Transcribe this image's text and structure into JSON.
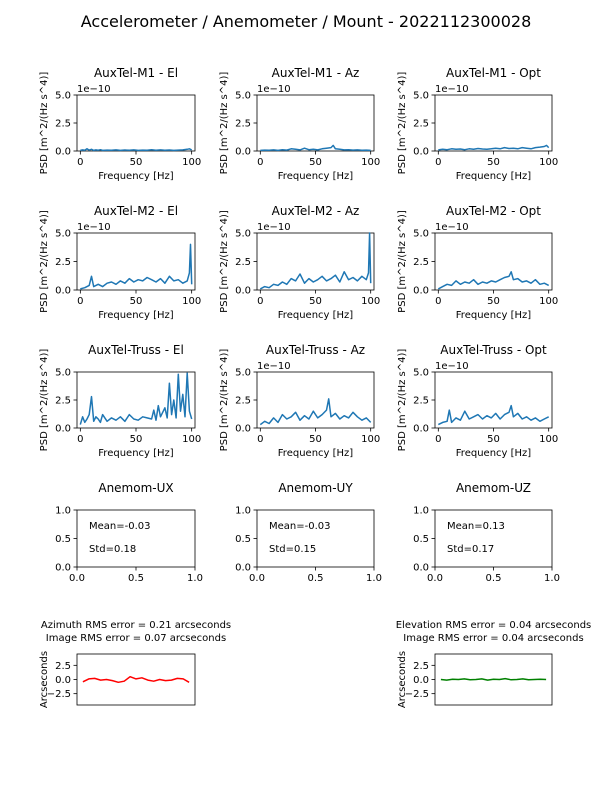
{
  "figure": {
    "title": "Accelerometer / Anemometer / Mount - 2022112300028"
  },
  "chart_data": [
    {
      "id": "m1el",
      "type": "line",
      "title": "AuxTel-M1 - El",
      "xlabel": "Frequency [Hz]",
      "ylabel": "PSD [m^2/(Hz s^4)]",
      "offset_text": "1e−10",
      "xlim": [
        -3,
        103
      ],
      "ylim": [
        0,
        5
      ],
      "xticks": [
        0,
        50,
        100
      ],
      "yticks": [
        0.0,
        2.5,
        5.0
      ],
      "xtick_labels": [
        "0",
        "50",
        "100"
      ],
      "ytick_labels": [
        "0.0",
        "2.5",
        "5.0"
      ],
      "scale_note": "values in units of 1e-10",
      "series": [
        {
          "name": "PSD",
          "color": "#1f77b4",
          "x": [
            0,
            2,
            4,
            6,
            8,
            10,
            12,
            14,
            16,
            18,
            20,
            24,
            28,
            32,
            36,
            40,
            44,
            48,
            52,
            56,
            60,
            64,
            68,
            72,
            76,
            80,
            84,
            88,
            92,
            96,
            98,
            100
          ],
          "y": [
            0.05,
            0.1,
            0.06,
            0.2,
            0.08,
            0.15,
            0.05,
            0.1,
            0.07,
            0.12,
            0.05,
            0.08,
            0.06,
            0.1,
            0.05,
            0.09,
            0.06,
            0.1,
            0.05,
            0.08,
            0.06,
            0.12,
            0.07,
            0.1,
            0.06,
            0.09,
            0.05,
            0.08,
            0.1,
            0.15,
            0.2,
            0.1
          ]
        }
      ]
    },
    {
      "id": "m1az",
      "type": "line",
      "title": "AuxTel-M1 - Az",
      "xlabel": "Frequency [Hz]",
      "ylabel": "PSD [m^2/(Hz s^4)]",
      "offset_text": "1e−10",
      "xlim": [
        -3,
        103
      ],
      "ylim": [
        0,
        5
      ],
      "xticks": [
        0,
        50,
        100
      ],
      "yticks": [
        0.0,
        2.5,
        5.0
      ],
      "xtick_labels": [
        "0",
        "50",
        "100"
      ],
      "ytick_labels": [
        "0.0",
        "2.5",
        "5.0"
      ],
      "scale_note": "values in units of 1e-10",
      "series": [
        {
          "name": "PSD",
          "color": "#1f77b4",
          "x": [
            0,
            4,
            8,
            12,
            16,
            20,
            24,
            28,
            32,
            36,
            40,
            44,
            48,
            52,
            56,
            60,
            64,
            66,
            68,
            72,
            76,
            80,
            84,
            88,
            92,
            96,
            100
          ],
          "y": [
            0.05,
            0.08,
            0.06,
            0.1,
            0.05,
            0.12,
            0.08,
            0.2,
            0.15,
            0.1,
            0.25,
            0.12,
            0.15,
            0.1,
            0.2,
            0.25,
            0.3,
            0.5,
            0.2,
            0.15,
            0.1,
            0.12,
            0.08,
            0.1,
            0.06,
            0.08,
            0.05
          ]
        }
      ]
    },
    {
      "id": "m1opt",
      "type": "line",
      "title": "AuxTel-M1 - Opt",
      "xlabel": "Frequency [Hz]",
      "ylabel": "PSD [m^2/(Hz s^4)]",
      "offset_text": "1e−10",
      "xlim": [
        -3,
        103
      ],
      "ylim": [
        0,
        5
      ],
      "xticks": [
        0,
        50,
        100
      ],
      "yticks": [
        0.0,
        2.5,
        5.0
      ],
      "xtick_labels": [
        "0",
        "50",
        "100"
      ],
      "ytick_labels": [
        "0.0",
        "2.5",
        "5.0"
      ],
      "scale_note": "values in units of 1e-10",
      "series": [
        {
          "name": "PSD",
          "color": "#1f77b4",
          "x": [
            0,
            4,
            8,
            12,
            16,
            20,
            24,
            28,
            32,
            36,
            40,
            44,
            48,
            52,
            56,
            60,
            64,
            68,
            72,
            76,
            80,
            84,
            88,
            92,
            96,
            98,
            100
          ],
          "y": [
            0.1,
            0.15,
            0.12,
            0.2,
            0.15,
            0.18,
            0.12,
            0.2,
            0.15,
            0.22,
            0.18,
            0.15,
            0.2,
            0.25,
            0.2,
            0.3,
            0.22,
            0.25,
            0.2,
            0.3,
            0.25,
            0.2,
            0.3,
            0.35,
            0.4,
            0.5,
            0.3
          ]
        }
      ]
    },
    {
      "id": "m2el",
      "type": "line",
      "title": "AuxTel-M2 - El",
      "xlabel": "Frequency [Hz]",
      "ylabel": "PSD [m^2/(Hz s^4)]",
      "offset_text": "1e−10",
      "xlim": [
        -3,
        103
      ],
      "ylim": [
        0,
        5
      ],
      "xticks": [
        0,
        50,
        100
      ],
      "yticks": [
        0.0,
        2.5,
        5.0
      ],
      "xtick_labels": [
        "0",
        "50",
        "100"
      ],
      "ytick_labels": [
        "0.0",
        "2.5",
        "5.0"
      ],
      "scale_note": "values in units of 1e-10",
      "series": [
        {
          "name": "PSD",
          "color": "#1f77b4",
          "x": [
            0,
            4,
            8,
            10,
            12,
            16,
            20,
            24,
            28,
            32,
            36,
            40,
            44,
            48,
            52,
            56,
            60,
            64,
            68,
            72,
            76,
            80,
            84,
            88,
            92,
            96,
            98,
            99,
            100
          ],
          "y": [
            0.1,
            0.2,
            0.4,
            1.2,
            0.3,
            0.5,
            0.3,
            0.6,
            0.7,
            0.5,
            0.8,
            0.6,
            1.0,
            0.7,
            0.9,
            0.8,
            1.1,
            0.9,
            0.7,
            1.0,
            0.6,
            1.2,
            0.8,
            0.9,
            0.6,
            0.8,
            1.5,
            4.0,
            0.5
          ]
        }
      ]
    },
    {
      "id": "m2az",
      "type": "line",
      "title": "AuxTel-M2 - Az",
      "xlabel": "Frequency [Hz]",
      "ylabel": "PSD [m^2/(Hz s^4)]",
      "offset_text": "1e−10",
      "xlim": [
        -3,
        103
      ],
      "ylim": [
        0,
        5
      ],
      "xticks": [
        0,
        50,
        100
      ],
      "yticks": [
        0.0,
        2.5,
        5.0
      ],
      "xtick_labels": [
        "0",
        "50",
        "100"
      ],
      "ytick_labels": [
        "0.0",
        "2.5",
        "5.0"
      ],
      "scale_note": "values in units of 1e-10",
      "series": [
        {
          "name": "PSD",
          "color": "#1f77b4",
          "x": [
            0,
            4,
            8,
            12,
            16,
            20,
            24,
            28,
            32,
            36,
            40,
            44,
            48,
            52,
            56,
            60,
            64,
            68,
            72,
            76,
            80,
            84,
            88,
            92,
            96,
            98,
            99,
            100
          ],
          "y": [
            0.1,
            0.3,
            0.2,
            0.5,
            0.4,
            0.7,
            0.5,
            1.0,
            0.8,
            1.4,
            0.6,
            1.0,
            0.7,
            0.9,
            1.2,
            0.8,
            1.0,
            1.3,
            0.7,
            1.6,
            0.9,
            1.1,
            0.8,
            1.2,
            0.9,
            1.5,
            5.0,
            0.6
          ]
        }
      ]
    },
    {
      "id": "m2opt",
      "type": "line",
      "title": "AuxTel-M2 - Opt",
      "xlabel": "Frequency [Hz]",
      "ylabel": "PSD [m^2/(Hz s^4)]",
      "offset_text": "1e−10",
      "xlim": [
        -3,
        103
      ],
      "ylim": [
        0,
        5
      ],
      "xticks": [
        0,
        50,
        100
      ],
      "yticks": [
        0.0,
        2.5,
        5.0
      ],
      "xtick_labels": [
        "0",
        "50",
        "100"
      ],
      "ytick_labels": [
        "0.0",
        "2.5",
        "5.0"
      ],
      "scale_note": "values in units of 1e-10",
      "series": [
        {
          "name": "PSD",
          "color": "#1f77b4",
          "x": [
            0,
            4,
            8,
            12,
            16,
            20,
            24,
            28,
            32,
            36,
            40,
            44,
            48,
            52,
            56,
            60,
            64,
            66,
            68,
            72,
            76,
            80,
            84,
            88,
            92,
            96,
            100
          ],
          "y": [
            0.1,
            0.3,
            0.5,
            0.4,
            0.8,
            0.5,
            0.7,
            0.6,
            0.9,
            0.5,
            0.7,
            0.6,
            0.8,
            0.7,
            0.9,
            1.1,
            1.2,
            1.6,
            0.9,
            1.0,
            0.7,
            0.8,
            0.6,
            0.9,
            0.5,
            0.6,
            0.4
          ]
        }
      ]
    },
    {
      "id": "trel",
      "type": "line",
      "title": "AuxTel-Truss - El",
      "xlabel": "Frequency [Hz]",
      "ylabel": "PSD [m^2/(Hz s^4)]",
      "offset_text": "",
      "xlim": [
        -3,
        103
      ],
      "ylim": [
        0,
        5
      ],
      "xticks": [
        0,
        50,
        100
      ],
      "yticks": [
        0.0,
        2.5,
        5.0
      ],
      "xtick_labels": [
        "0",
        "50",
        "100"
      ],
      "ytick_labels": [
        "0.0",
        "2.5",
        "5.0"
      ],
      "scale_note": "values in units of 1e-10",
      "series": [
        {
          "name": "PSD",
          "color": "#1f77b4",
          "x": [
            0,
            2,
            4,
            6,
            8,
            10,
            12,
            14,
            16,
            18,
            20,
            24,
            28,
            32,
            36,
            40,
            44,
            48,
            52,
            56,
            60,
            64,
            66,
            68,
            70,
            72,
            76,
            78,
            80,
            82,
            84,
            86,
            88,
            90,
            92,
            94,
            96,
            98,
            100
          ],
          "y": [
            0.3,
            1.0,
            0.5,
            0.8,
            1.2,
            2.8,
            0.6,
            1.0,
            0.8,
            0.5,
            1.2,
            0.6,
            0.9,
            0.7,
            1.0,
            0.6,
            1.2,
            0.8,
            0.7,
            1.0,
            0.9,
            0.8,
            1.6,
            0.7,
            2.0,
            1.0,
            1.8,
            0.9,
            4.0,
            1.2,
            2.5,
            0.9,
            4.8,
            1.5,
            3.0,
            1.0,
            4.9,
            1.5,
            0.8
          ]
        }
      ]
    },
    {
      "id": "traz",
      "type": "line",
      "title": "AuxTel-Truss - Az",
      "xlabel": "Frequency [Hz]",
      "ylabel": "PSD [m^2/(Hz s^4)]",
      "offset_text": "1e−10",
      "xlim": [
        -3,
        103
      ],
      "ylim": [
        0,
        5
      ],
      "xticks": [
        0,
        50,
        100
      ],
      "yticks": [
        0.0,
        2.5,
        5.0
      ],
      "xtick_labels": [
        "0",
        "50",
        "100"
      ],
      "ytick_labels": [
        "0.0",
        "2.5",
        "5.0"
      ],
      "scale_note": "values in units of 1e-10",
      "series": [
        {
          "name": "PSD",
          "color": "#1f77b4",
          "x": [
            0,
            4,
            8,
            12,
            16,
            20,
            24,
            28,
            32,
            36,
            40,
            44,
            48,
            52,
            56,
            60,
            62,
            64,
            68,
            72,
            76,
            80,
            84,
            88,
            92,
            96,
            100
          ],
          "y": [
            0.3,
            0.6,
            0.4,
            0.9,
            0.5,
            1.2,
            0.8,
            1.0,
            1.4,
            0.7,
            1.1,
            0.8,
            1.5,
            0.9,
            1.2,
            1.6,
            2.6,
            1.0,
            1.3,
            0.8,
            1.1,
            0.9,
            1.4,
            1.0,
            0.7,
            0.9,
            0.5
          ]
        }
      ]
    },
    {
      "id": "tropt",
      "type": "line",
      "title": "AuxTel-Truss - Opt",
      "xlabel": "Frequency [Hz]",
      "ylabel": "PSD [m^2/(Hz s^4)]",
      "offset_text": "1e−10",
      "xlim": [
        -3,
        103
      ],
      "ylim": [
        0,
        5
      ],
      "xticks": [
        0,
        50,
        100
      ],
      "yticks": [
        0.0,
        2.5,
        5.0
      ],
      "xtick_labels": [
        "0",
        "50",
        "100"
      ],
      "ytick_labels": [
        "0.0",
        "2.5",
        "5.0"
      ],
      "scale_note": "values in units of 1e-10",
      "series": [
        {
          "name": "PSD",
          "color": "#1f77b4",
          "x": [
            0,
            4,
            8,
            10,
            12,
            16,
            20,
            24,
            28,
            32,
            36,
            40,
            44,
            48,
            52,
            56,
            60,
            64,
            66,
            68,
            72,
            76,
            80,
            84,
            88,
            92,
            96,
            100
          ],
          "y": [
            0.3,
            0.5,
            0.6,
            1.6,
            0.5,
            0.9,
            0.7,
            1.5,
            0.8,
            1.0,
            1.2,
            0.8,
            1.1,
            0.9,
            1.3,
            0.8,
            1.2,
            1.4,
            2.0,
            1.0,
            1.3,
            0.8,
            1.0,
            0.7,
            0.9,
            0.6,
            0.8,
            1.0
          ]
        }
      ]
    },
    {
      "id": "anux",
      "type": "text",
      "title": "Anemom-UX",
      "xlim": [
        0,
        1
      ],
      "ylim": [
        0,
        1
      ],
      "xticks": [
        0,
        0.5,
        1
      ],
      "yticks": [
        0,
        0.5,
        1
      ],
      "xtick_labels": [
        "0.0",
        "0.5",
        "1.0"
      ],
      "ytick_labels": [
        "0.0",
        "0.5",
        "1.0"
      ],
      "mean_text": "Mean=-0.03",
      "std_text": "Std=0.18"
    },
    {
      "id": "anuy",
      "type": "text",
      "title": "Anemom-UY",
      "xlim": [
        0,
        1
      ],
      "ylim": [
        0,
        1
      ],
      "xticks": [
        0,
        0.5,
        1
      ],
      "yticks": [
        0,
        0.5,
        1
      ],
      "xtick_labels": [
        "0.0",
        "0.5",
        "1.0"
      ],
      "ytick_labels": [
        "0.0",
        "0.5",
        "1.0"
      ],
      "mean_text": "Mean=-0.03",
      "std_text": "Std=0.15"
    },
    {
      "id": "anuz",
      "type": "text",
      "title": "Anemom-UZ",
      "xlim": [
        0,
        1
      ],
      "ylim": [
        0,
        1
      ],
      "xticks": [
        0,
        0.5,
        1
      ],
      "yticks": [
        0,
        0.5,
        1
      ],
      "xtick_labels": [
        "0.0",
        "0.5",
        "1.0"
      ],
      "ytick_labels": [
        "0.0",
        "0.5",
        "1.0"
      ],
      "mean_text": "Mean=0.13",
      "std_text": "Std=0.17"
    },
    {
      "id": "azerr",
      "type": "line",
      "title_line1": "Azimuth RMS error = 0.21 arcseconds",
      "title_line2": "Image RMS error = 0.07 arcseconds",
      "ylabel": "Arcseconds",
      "xlim": [
        0,
        100
      ],
      "ylim": [
        -4.5,
        4.5
      ],
      "yticks": [
        -2.5,
        0.0,
        2.5
      ],
      "ytick_labels": [
        "−2.5",
        "0.0",
        "2.5"
      ],
      "series": [
        {
          "name": "Azimuth error",
          "color": "#ff0000",
          "x": [
            5,
            10,
            15,
            20,
            25,
            30,
            35,
            40,
            45,
            50,
            55,
            60,
            65,
            70,
            75,
            80,
            85,
            90,
            95
          ],
          "y": [
            -0.4,
            0.1,
            0.2,
            -0.1,
            0.0,
            -0.2,
            -0.5,
            -0.3,
            0.5,
            0.1,
            0.3,
            -0.1,
            -0.3,
            0.0,
            -0.2,
            -0.1,
            0.2,
            0.1,
            -0.5
          ]
        }
      ]
    },
    {
      "id": "elerr",
      "type": "line",
      "title_line1": "Elevation RMS error = 0.04 arcseconds",
      "title_line2": "Image RMS error = 0.04 arcseconds",
      "ylabel": "Arcseconds",
      "xlim": [
        0,
        100
      ],
      "ylim": [
        -4.5,
        4.5
      ],
      "yticks": [
        -2.5,
        0.0,
        2.5
      ],
      "ytick_labels": [
        "−2.5",
        "0.0",
        "2.5"
      ],
      "series": [
        {
          "name": "Elevation error",
          "color": "#008000",
          "x": [
            5,
            10,
            15,
            20,
            25,
            30,
            35,
            40,
            45,
            50,
            55,
            60,
            65,
            70,
            75,
            80,
            85,
            90,
            95
          ],
          "y": [
            0.0,
            -0.1,
            0.05,
            0.0,
            0.1,
            -0.05,
            0.0,
            0.1,
            -0.1,
            0.05,
            0.0,
            0.15,
            -0.05,
            0.0,
            0.1,
            -0.05,
            0.0,
            0.05,
            0.0
          ]
        }
      ]
    }
  ]
}
